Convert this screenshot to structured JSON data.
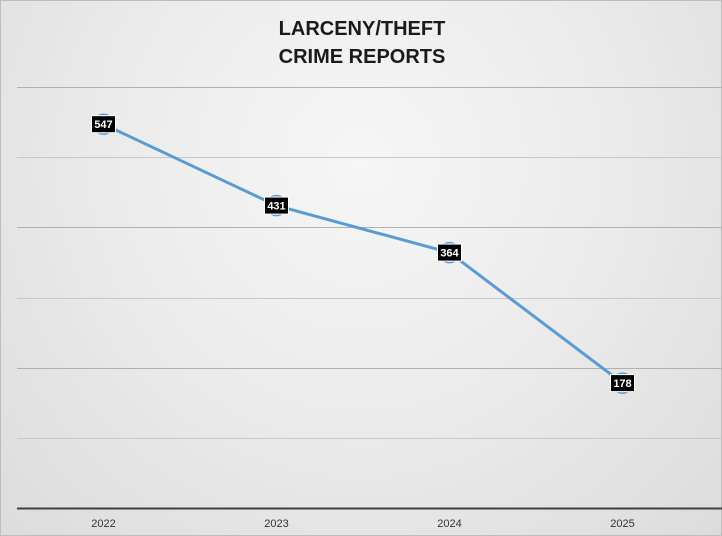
{
  "chart_data": {
    "type": "line",
    "title_lines": [
      "LARCENY/THEFT",
      "CRIME REPORTS"
    ],
    "categories": [
      "2022",
      "2023",
      "2024",
      "2025"
    ],
    "series": [
      {
        "values": [
          547,
          431,
          364,
          178
        ]
      }
    ],
    "ylim": [
      0,
      600
    ],
    "grid": true,
    "legend": "none",
    "line_color": "#5b9bd5",
    "gridline_color": "#c8c8c8",
    "axis_color": "#404040",
    "data_label_bg": "#000000",
    "data_label_color": "#ffffff"
  }
}
